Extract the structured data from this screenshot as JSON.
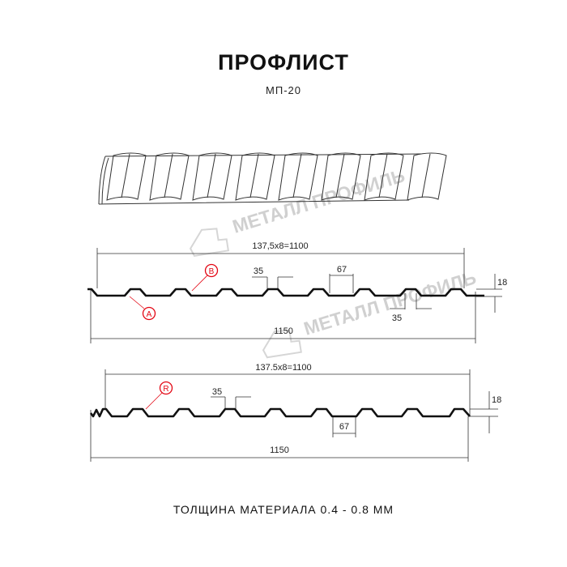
{
  "title": "ПРОФЛИСТ",
  "subtitle": "МП-20",
  "watermark": "МЕТАЛЛ ПРОФИЛЬ",
  "profile_top": {
    "pitch_dim": "137,5x8=1100",
    "width_dim": "1150",
    "top_width": "35",
    "bottom_width_lower": "35",
    "gap_dim": "67",
    "height_dim": "18",
    "marker_a": "A",
    "marker_b": "B"
  },
  "profile_bottom": {
    "pitch_dim": "137.5x8=1100",
    "width_dim": "1150",
    "top_width": "35",
    "gap_dim": "67",
    "height_dim": "18",
    "marker_r": "R"
  },
  "footer": "ТОЛЩИНА МАТЕРИАЛА 0.4 - 0.8 ММ",
  "colors": {
    "profile": "#111111",
    "marker": "#e30613",
    "dimension": "#333333",
    "watermark": "#d0d0d0"
  }
}
